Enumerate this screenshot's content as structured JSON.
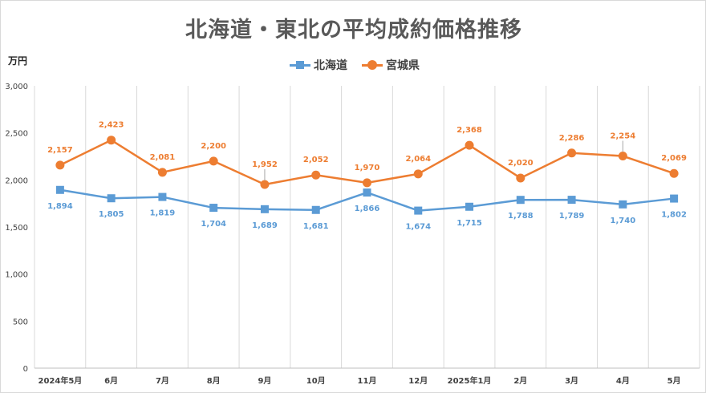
{
  "chart_data": {
    "type": "line",
    "title": "北海道・東北の平均成約価格推移",
    "ylabel": "万円",
    "xlabel": "",
    "categories": [
      "2024年5月",
      "6月",
      "7月",
      "8月",
      "9月",
      "10月",
      "11月",
      "12月",
      "2025年1月",
      "2月",
      "3月",
      "4月",
      "5月"
    ],
    "ylim": [
      0,
      3000
    ],
    "yticks": [
      0,
      500,
      1000,
      1500,
      2000,
      2500,
      3000
    ],
    "ytick_labels": [
      "0",
      "500",
      "1,000",
      "1,500",
      "2,000",
      "2,500",
      "3,000"
    ],
    "grid": "vertical",
    "legend_position": "top",
    "series": [
      {
        "name": "北海道",
        "color": "#5b9bd5",
        "marker": "square",
        "values": [
          1894,
          1805,
          1819,
          1704,
          1689,
          1681,
          1866,
          1674,
          1715,
          1788,
          1789,
          1740,
          1802
        ],
        "labels": [
          "1,894",
          "1,805",
          "1,819",
          "1,704",
          "1,689",
          "1,681",
          "1,866",
          "1,674",
          "1,715",
          "1,788",
          "1,789",
          "1,740",
          "1,802"
        ]
      },
      {
        "name": "宮城県",
        "color": "#ed7d31",
        "marker": "circle",
        "values": [
          2157,
          2423,
          2081,
          2200,
          1952,
          2052,
          1970,
          2064,
          2368,
          2020,
          2286,
          2254,
          2069
        ],
        "labels": [
          "2,157",
          "2,423",
          "2,081",
          "2,200",
          "1,952",
          "2,052",
          "1,970",
          "2,064",
          "2,368",
          "2,020",
          "2,286",
          "2,254",
          "2,069"
        ]
      }
    ]
  }
}
